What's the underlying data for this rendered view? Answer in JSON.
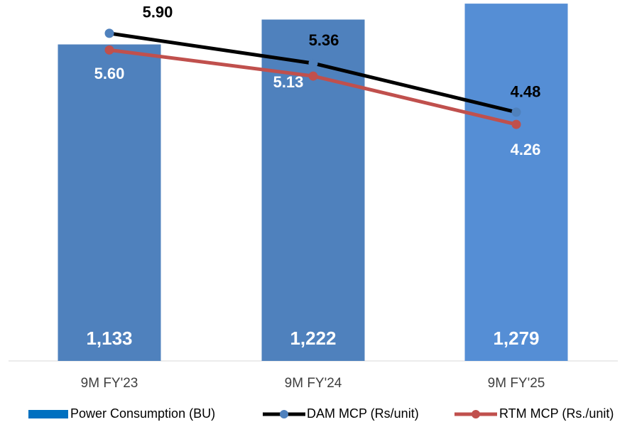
{
  "chart_data": {
    "type": "bar-line",
    "categories": [
      "9M FY'23",
      "9M FY'24",
      "9M FY'25"
    ],
    "series": [
      {
        "name": "Power Consumption (BU)",
        "type": "bar",
        "colors": [
          "#4f81bd",
          "#4f81bd",
          "#558ed5"
        ],
        "legend_color": "#0070c0",
        "values": [
          1133,
          1222,
          1279
        ],
        "value_labels": [
          "1,133",
          "1,222",
          "1,279"
        ]
      },
      {
        "name": "DAM MCP (Rs/unit)",
        "type": "line",
        "axis": "y2",
        "color": "#000000",
        "marker_color": "#4f81bd",
        "values": [
          5.9,
          5.36,
          4.48
        ],
        "value_labels": [
          "5.90",
          "5.36",
          "4.48"
        ]
      },
      {
        "name": "RTM MCP (Rs./unit)",
        "type": "line",
        "axis": "y2",
        "color": "#c0504d",
        "marker_color": "#c0504d",
        "values": [
          5.6,
          5.13,
          4.26
        ],
        "value_labels": [
          "5.60",
          "5.13",
          "4.26"
        ]
      }
    ],
    "ylim": [
      0,
      1292
    ],
    "y2lim": [
      0,
      6.5
    ],
    "grid": false,
    "legend": "bottom"
  }
}
